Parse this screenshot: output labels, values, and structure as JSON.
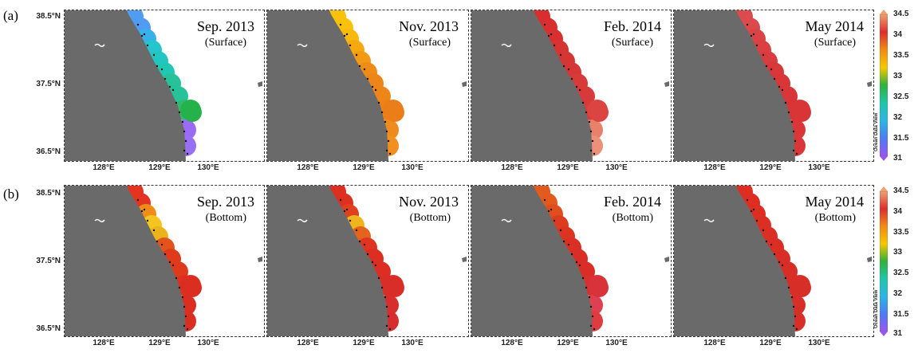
{
  "figure": {
    "rows": [
      {
        "label": "(a)",
        "depth_label": "(Surface)",
        "panels": [
          {
            "date": "Sep. 2013",
            "colors": [
              "#4f9cf0",
              "#38b0ea",
              "#25c4cf",
              "#22c6c0",
              "#20c8b4",
              "#28c29a",
              "#30b96f",
              "#25b24a",
              "#9a6cf6",
              "#9870f4"
            ]
          },
          {
            "date": "Nov. 2013",
            "colors": [
              "#f8c20c",
              "#f8b80c",
              "#f6a810",
              "#f29a14",
              "#ef8c18",
              "#ee8518",
              "#ed8018",
              "#ec7e1a",
              "#ef8a1c",
              "#f1901e"
            ]
          },
          {
            "date": "Feb. 2014",
            "colors": [
              "#d92e2e",
              "#d83030",
              "#d63432",
              "#d53634",
              "#d63636",
              "#d73a38",
              "#d83c3a",
              "#db4440",
              "#e8806a",
              "#ec907a"
            ]
          },
          {
            "date": "May 2014",
            "colors": [
              "#dc4a4c",
              "#db4446",
              "#da4042",
              "#d93c3e",
              "#d8383a",
              "#d83638",
              "#d83436",
              "#d93436",
              "#da3638",
              "#da3638"
            ]
          }
        ]
      },
      {
        "label": "(b)",
        "depth_label": "(Bottom)",
        "panels": [
          {
            "date": "Sep. 2013",
            "colors": [
              "#e33420",
              "#f08c18",
              "#f4c51e",
              "#ecb41c",
              "#e2541c",
              "#df3a1c",
              "#dd301e",
              "#dc2e20",
              "#db2e20",
              "#db2e22"
            ]
          },
          {
            "date": "Nov. 2013",
            "colors": [
              "#de3020",
              "#e0401e",
              "#f0b41e",
              "#e4641c",
              "#de3420",
              "#dc2e22",
              "#da2e24",
              "#d92e28",
              "#d72e2e",
              "#d62e2e"
            ]
          },
          {
            "date": "Feb. 2014",
            "colors": [
              "#e35a1e",
              "#e04e1e",
              "#dd3c20",
              "#db3422",
              "#da3024",
              "#d92e26",
              "#d8302a",
              "#d8323a",
              "#dd4050",
              "#de3c40"
            ]
          },
          {
            "date": "May 2014",
            "colors": [
              "#de2e22",
              "#dd2e22",
              "#dc2e22",
              "#db2e24",
              "#da2e24",
              "#d92e26",
              "#d92e26",
              "#d82e28",
              "#d82e28",
              "#d82e28"
            ]
          }
        ]
      }
    ],
    "lat_labels": [
      "38.5°N",
      "37.5°N",
      "36.5°N"
    ],
    "lon_labels": [
      "128°E",
      "129°E",
      "130°E"
    ],
    "colorbar": {
      "ticks": [
        "34.5",
        "34",
        "33.5",
        "33",
        "32.5",
        "32",
        "31.5",
        "31"
      ],
      "min": 31,
      "max": 34.5,
      "credit": "Ocean Data View",
      "stops": [
        "#9b55f2",
        "#4b7cf2",
        "#2ab5e6",
        "#1fc6a8",
        "#2fb23c",
        "#f6c800",
        "#f28a14",
        "#dd2e2e",
        "#f0a070"
      ]
    }
  }
}
